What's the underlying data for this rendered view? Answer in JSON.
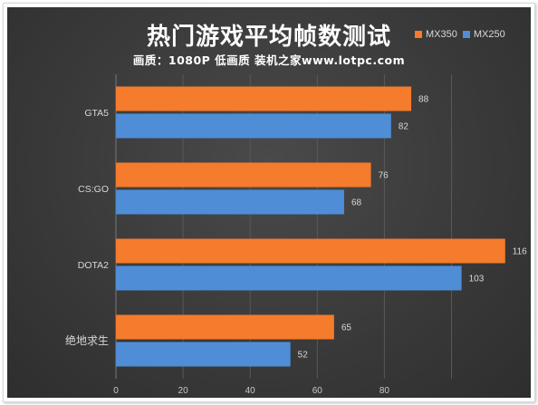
{
  "chart_data": {
    "type": "bar",
    "orientation": "horizontal",
    "title": "热门游戏平均帧数测试",
    "subtitle": "画质：1080P 低画质  装机之家www.lotpc.com",
    "categories": [
      "GTA5",
      "CS:GO",
      "DOTA2",
      "绝地求生"
    ],
    "series": [
      {
        "name": "MX350",
        "color": "#f47c2c",
        "values": [
          88,
          76,
          116,
          65
        ]
      },
      {
        "name": "MX250",
        "color": "#4f8ed6",
        "values": [
          82,
          68,
          103,
          52
        ]
      }
    ],
    "xticks": [
      0,
      20,
      40,
      60,
      80
    ],
    "xlim": [
      0,
      120
    ],
    "grid": true,
    "legend_position": "top-right"
  }
}
